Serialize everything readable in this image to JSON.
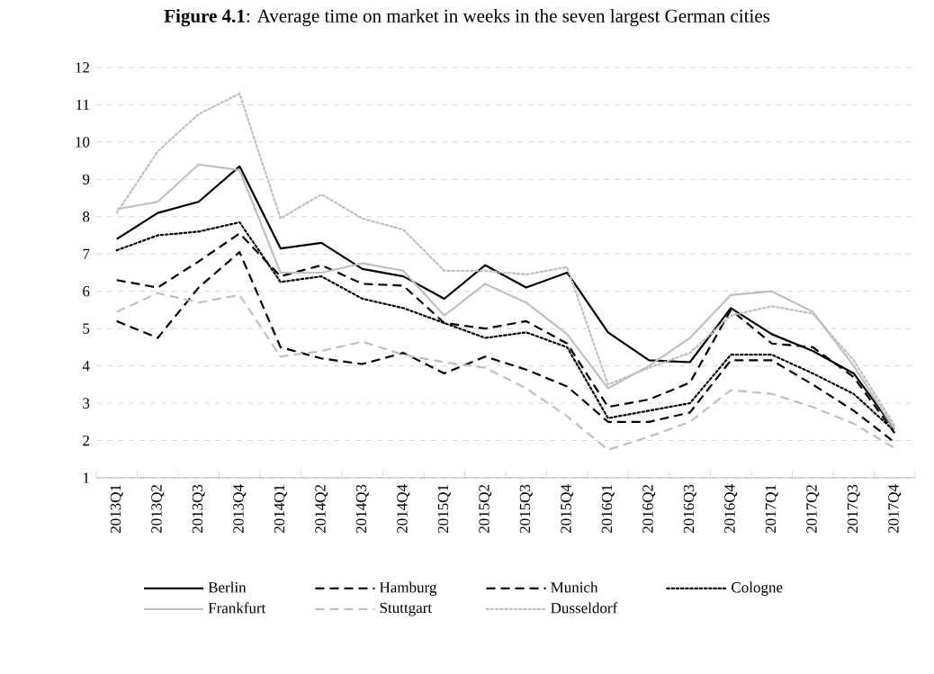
{
  "chart_data": {
    "type": "line",
    "title": "**Figure 4.1**: Average time on market in weeks in the seven largest German cities",
    "categories": [
      "2013Q1",
      "2013Q2",
      "2013Q3",
      "2013Q4",
      "2014Q1",
      "2014Q2",
      "2014Q3",
      "2014Q4",
      "2015Q1",
      "2015Q2",
      "2015Q3",
      "2015Q4",
      "2016Q1",
      "2016Q2",
      "2016Q3",
      "2016Q4",
      "2017Q1",
      "2017Q2",
      "2017Q3",
      "2017Q4"
    ],
    "series": [
      {
        "name": "Berlin",
        "color": "#000000",
        "line_style": "solid",
        "values": [
          7.4,
          8.1,
          8.4,
          9.35,
          7.15,
          7.3,
          6.6,
          6.4,
          5.8,
          6.7,
          6.1,
          6.5,
          4.9,
          4.15,
          4.1,
          5.55,
          4.85,
          4.4,
          3.8,
          2.3
        ]
      },
      {
        "name": "Hamburg",
        "color": "#000000",
        "line_style": "dashed",
        "values": [
          6.3,
          6.1,
          6.8,
          7.55,
          6.4,
          6.7,
          6.2,
          6.15,
          5.15,
          5.0,
          5.2,
          4.6,
          2.9,
          3.1,
          3.55,
          5.5,
          4.6,
          4.5,
          3.7,
          2.2
        ]
      },
      {
        "name": "Munich",
        "color": "#000000",
        "line_style": "dashed",
        "values": [
          5.2,
          4.75,
          6.1,
          7.05,
          4.5,
          4.2,
          4.05,
          4.35,
          3.8,
          4.25,
          3.9,
          3.45,
          2.5,
          2.5,
          2.75,
          4.15,
          4.15,
          3.5,
          2.8,
          1.95
        ]
      },
      {
        "name": "Cologne",
        "color": "#000000",
        "line_style": "dotted",
        "values": [
          7.1,
          7.5,
          7.6,
          7.85,
          6.25,
          6.4,
          5.8,
          5.55,
          5.15,
          4.75,
          4.9,
          4.5,
          2.6,
          2.8,
          3.0,
          4.3,
          4.3,
          3.8,
          3.25,
          2.25
        ]
      },
      {
        "name": "Frankfurt",
        "color": "#bfbfbf",
        "line_style": "solid",
        "values": [
          8.2,
          8.4,
          9.4,
          9.25,
          6.5,
          6.5,
          6.75,
          6.55,
          5.35,
          6.2,
          5.7,
          4.85,
          3.4,
          4.0,
          4.75,
          5.9,
          6.0,
          5.45,
          4.0,
          2.3
        ]
      },
      {
        "name": "Stuttgart",
        "color": "#bfbfbf",
        "line_style": "dashed",
        "values": [
          5.45,
          5.95,
          5.7,
          5.9,
          4.25,
          4.4,
          4.65,
          4.3,
          4.1,
          3.95,
          3.4,
          2.65,
          1.75,
          2.1,
          2.5,
          3.35,
          3.25,
          2.9,
          2.45,
          1.8
        ]
      },
      {
        "name": "Dusseldorf",
        "color": "#bfbfbf",
        "line_style": "dotted",
        "values": [
          8.1,
          9.75,
          10.75,
          11.3,
          7.95,
          8.6,
          7.95,
          7.65,
          6.55,
          6.55,
          6.45,
          6.65,
          3.5,
          3.95,
          4.35,
          5.35,
          5.6,
          5.4,
          4.15,
          2.4
        ]
      }
    ],
    "ylim": [
      1,
      12
    ],
    "yticks": [
      1,
      2,
      3,
      4,
      5,
      6,
      7,
      8,
      9,
      10,
      11,
      12
    ],
    "grid": "y",
    "legend": "bottom"
  }
}
